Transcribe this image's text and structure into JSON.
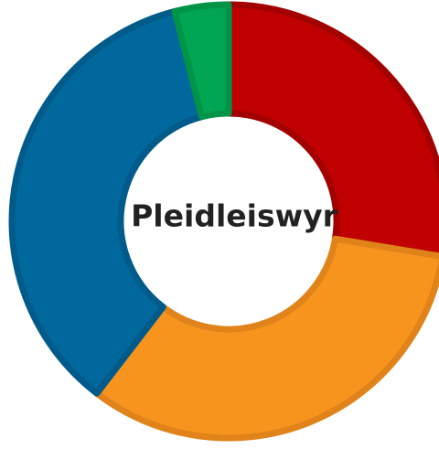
{
  "chart_data": {
    "type": "donut",
    "title": "Pleidleiswyr",
    "values": [
      27.6,
      32.8,
      35.6,
      4.0
    ],
    "colors": [
      "#c00000",
      "#f7941d",
      "#00689c",
      "#00a651"
    ],
    "edge_colors": [
      "#a30000",
      "#e0831a",
      "#005b8a",
      "#009448"
    ]
  }
}
